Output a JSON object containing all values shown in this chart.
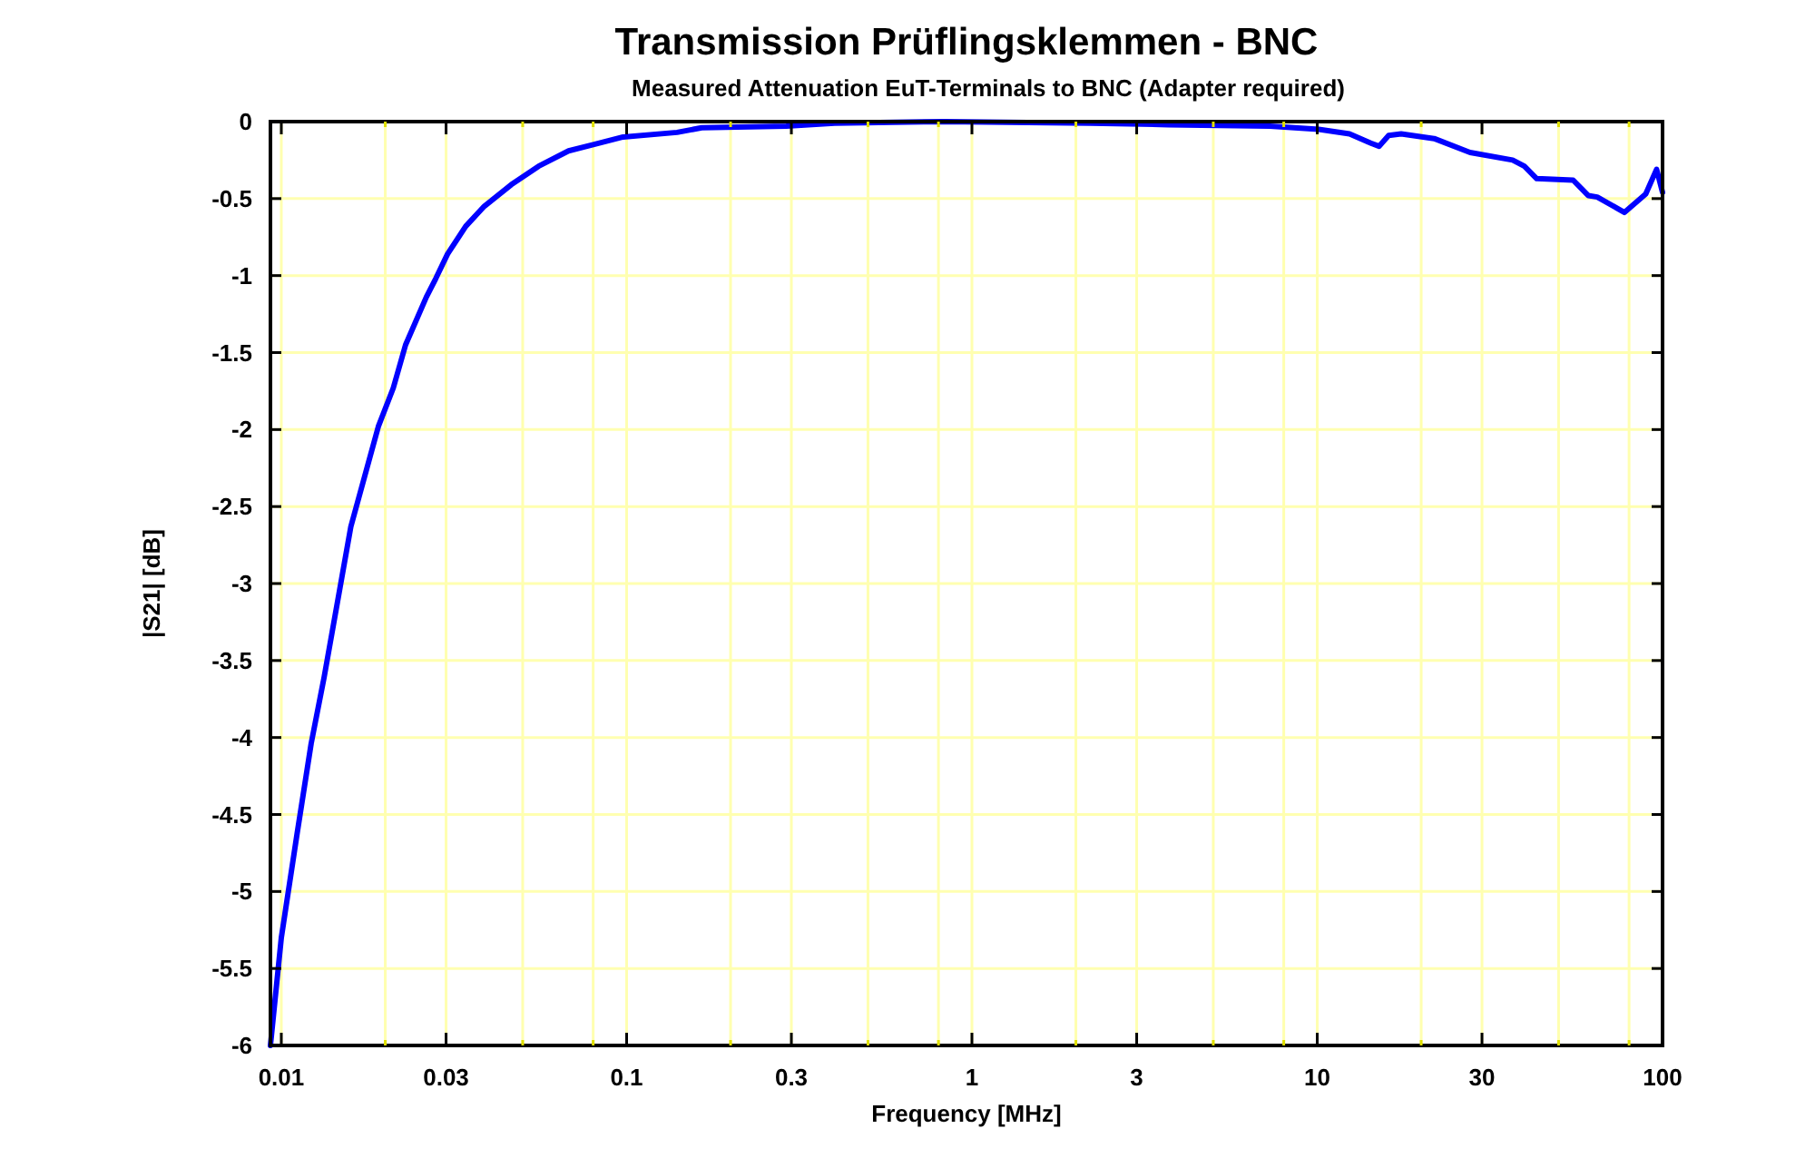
{
  "chart_data": {
    "type": "line",
    "title": "Transmission Prüflingsklemmen - BNC",
    "subtitle": "Measured Attenuation EuT-Terminals to BNC (Adapter required)",
    "xlabel": "Frequency [MHz]",
    "ylabel": "|S21| [dB]",
    "log": "x",
    "grid": true,
    "line_style": "solid",
    "marker": "none",
    "xlim": [
      0.0093,
      100
    ],
    "xticks": [
      0.01,
      {
        "value": 0.02,
        "label": null
      },
      0.03,
      {
        "value": 0.05,
        "label": null
      },
      {
        "value": 0.08,
        "label": null
      },
      0.1,
      {
        "value": 0.2,
        "label": null
      },
      0.3,
      {
        "value": 0.5,
        "label": null
      },
      {
        "value": 0.8,
        "label": null
      },
      1,
      {
        "value": 2,
        "label": null
      },
      3,
      {
        "value": 5,
        "label": null
      },
      {
        "value": 8,
        "label": null
      },
      10,
      {
        "value": 20,
        "label": null
      },
      30,
      {
        "value": 50,
        "label": null
      },
      {
        "value": 80,
        "label": null
      },
      100
    ],
    "ylim": [
      -6,
      0
    ],
    "yticks": [
      -6,
      -5.5,
      -5,
      -4.5,
      -4,
      -3.5,
      -3,
      -2.5,
      -2,
      -1.5,
      -1,
      -0.5,
      0
    ],
    "series": [
      {
        "color": "#0000ff",
        "x": [
          0.0093,
          0.01,
          0.0111,
          0.0122,
          0.0133,
          0.015,
          0.0159,
          0.0191,
          0.0211,
          0.0229,
          0.0263,
          0.028,
          0.0303,
          0.0342,
          0.0387,
          0.0463,
          0.0556,
          0.0679,
          0.08,
          0.0977,
          0.14,
          0.165,
          0.29,
          0.4,
          0.83,
          2.2,
          3.7,
          7.3,
          10.1,
          12.4,
          14.3,
          15.1,
          16.1,
          17.5,
          21.8,
          27.7,
          36.8,
          39.8,
          43.2,
          55.1,
          60.9,
          64.7,
          77.6,
          89.4,
          96.1,
          100
        ],
        "values": [
          -6,
          -5.3,
          -4.63,
          -4.04,
          -3.61,
          -2.95,
          -2.63,
          -1.98,
          -1.73,
          -1.45,
          -1.14,
          -1.02,
          -0.86,
          -0.68,
          -0.55,
          -0.41,
          -0.29,
          -0.19,
          -0.15,
          -0.1,
          -0.07,
          -0.04,
          -0.03,
          -0.01,
          0,
          -0.01,
          -0.02,
          -0.03,
          -0.05,
          -0.08,
          -0.14,
          -0.16,
          -0.09,
          -0.08,
          -0.11,
          -0.2,
          -0.25,
          -0.29,
          -0.37,
          -0.38,
          -0.48,
          -0.49,
          -0.59,
          -0.47,
          -0.31,
          -0.46
        ]
      }
    ]
  }
}
